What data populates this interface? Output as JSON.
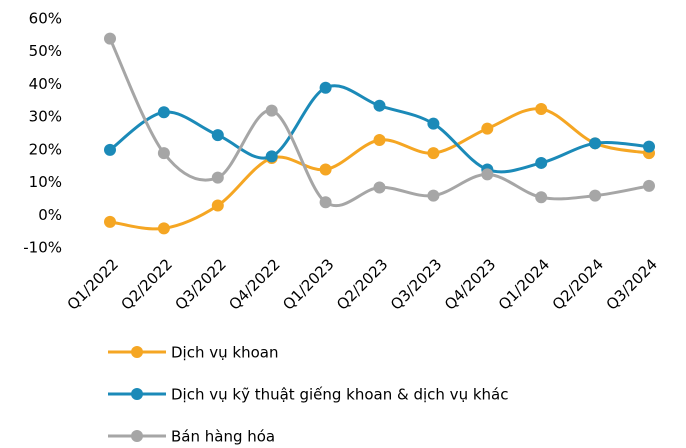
{
  "chart_data": {
    "type": "line",
    "categories": [
      "Q1/2022",
      "Q2/2022",
      "Q3/2022",
      "Q4/2022",
      "Q1/2023",
      "Q2/2023",
      "Q3/2023",
      "Q4/2023",
      "Q1/2024",
      "Q2/2024",
      "Q3/2024"
    ],
    "series": [
      {
        "name": "Dịch vụ khoan",
        "color": "#f5a623",
        "values": [
          -2,
          -4,
          3,
          17.5,
          14,
          23,
          19,
          26.5,
          32.5,
          22,
          19
        ]
      },
      {
        "name": "Dịch vụ kỹ thuật giếng khoan & dịch vụ khác",
        "color": "#1b8ab8",
        "values": [
          20,
          31.5,
          24.5,
          18,
          39,
          33.5,
          28,
          14,
          16,
          22,
          21
        ]
      },
      {
        "name": "Bán hàng hóa",
        "color": "#a6a6a6",
        "values": [
          54,
          19,
          11.5,
          32,
          4,
          8.5,
          6,
          12.5,
          5.5,
          6,
          9
        ]
      }
    ],
    "ylim": [
      -10,
      60
    ],
    "yticks": [
      {
        "value": -10,
        "label": "-10%"
      },
      {
        "value": 0,
        "label": "0%"
      },
      {
        "value": 10,
        "label": "10%"
      },
      {
        "value": 20,
        "label": "20%"
      },
      {
        "value": 30,
        "label": "30%"
      },
      {
        "value": 40,
        "label": "40%"
      },
      {
        "value": 50,
        "label": "50%"
      },
      {
        "value": 60,
        "label": "60%"
      }
    ],
    "grid": false,
    "legend": "bottom"
  }
}
